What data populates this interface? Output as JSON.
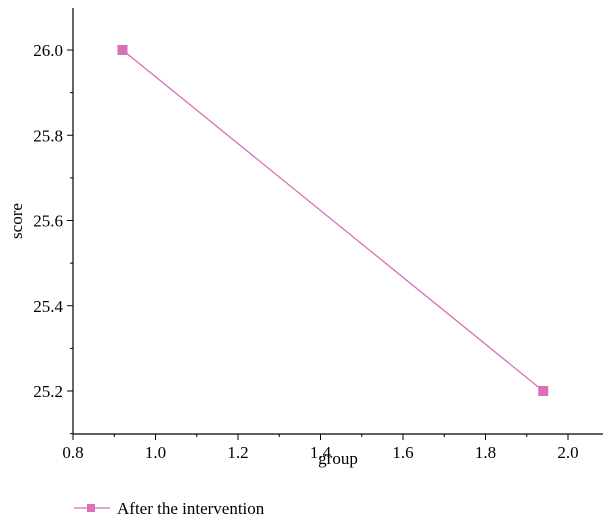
{
  "chart_data": {
    "type": "line",
    "title": "",
    "xlabel": "group",
    "ylabel": "score",
    "xlim": [
      0.8,
      2.1
    ],
    "ylim": [
      25.1,
      26.1
    ],
    "x_ticks": [
      0.8,
      1.0,
      1.2,
      1.4,
      1.6,
      1.8,
      2.0
    ],
    "x_tick_labels": [
      "0.8",
      "1.0",
      "1.2",
      "1.4",
      "1.6",
      "1.8",
      "2.0"
    ],
    "y_ticks": [
      25.2,
      25.4,
      25.6,
      25.8,
      26.0
    ],
    "y_tick_labels": [
      "25.2",
      "25.4",
      "25.6",
      "25.8",
      "26.0"
    ],
    "grid": false,
    "legend_position": "bottom-left",
    "series": [
      {
        "name": "After the intervention",
        "color": "#d872b8",
        "marker": "square",
        "x": [
          0.92,
          1.94
        ],
        "values": [
          26.0,
          25.2
        ]
      }
    ]
  }
}
